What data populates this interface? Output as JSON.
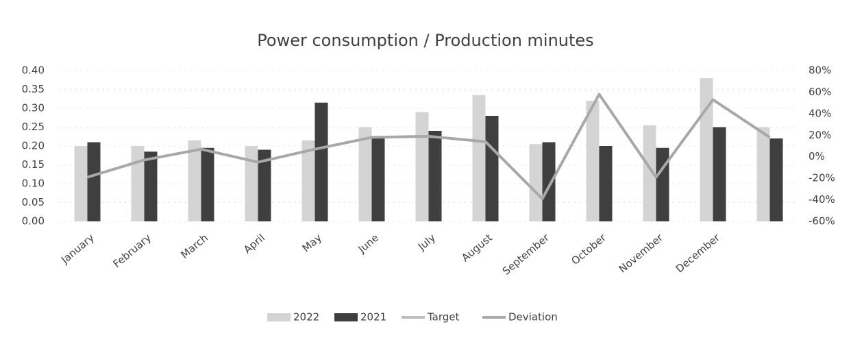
{
  "chart_data": {
    "type": "bar",
    "title": "Power consumption / Production minutes",
    "categories": [
      "January",
      "February",
      "March",
      "April",
      "May",
      "June",
      "July",
      "August",
      "September",
      "October",
      "November",
      "December",
      null
    ],
    "series": [
      {
        "name": "2022",
        "color": "#d4d4d4",
        "type": "bar",
        "values": [
          0.2,
          0.2,
          0.215,
          0.2,
          0.215,
          0.25,
          0.29,
          0.335,
          0.205,
          0.32,
          0.255,
          0.38,
          0.25
        ]
      },
      {
        "name": "2021",
        "color": "#3f3f3f",
        "type": "bar",
        "values": [
          0.21,
          0.185,
          0.195,
          0.19,
          0.315,
          0.22,
          0.24,
          0.28,
          0.21,
          0.2,
          0.195,
          0.25,
          0.22
        ]
      },
      {
        "name": "Target",
        "color": "#bdbdbd",
        "type": "line",
        "axis": "y2",
        "values": [
          null,
          null,
          null,
          null,
          null,
          null,
          null,
          null,
          null,
          null,
          null,
          null,
          null
        ]
      },
      {
        "name": "Deviation",
        "color": "#a8a8a8",
        "type": "line",
        "axis": "y2",
        "values": [
          -19,
          -3,
          7,
          -5,
          7,
          18,
          19,
          14,
          -39,
          58,
          -19,
          53,
          18
        ]
      }
    ],
    "ylim": [
      0,
      0.4
    ],
    "yticks": [
      {
        "value": 0,
        "label": "0.00"
      },
      {
        "value": 0.05,
        "label": "0.05"
      },
      {
        "value": 0.1,
        "label": "0.10"
      },
      {
        "value": 0.15,
        "label": "0.15"
      },
      {
        "value": 0.2,
        "label": "0.20"
      },
      {
        "value": 0.25,
        "label": "0.25"
      },
      {
        "value": 0.3,
        "label": "0.30"
      },
      {
        "value": 0.35,
        "label": "0.35"
      },
      {
        "value": 0.4,
        "label": "0.40"
      }
    ],
    "y2lim": [
      -60,
      80
    ],
    "y2ticks": [
      {
        "value": -60,
        "label": "-60%"
      },
      {
        "value": -40,
        "label": "-40%"
      },
      {
        "value": -20,
        "label": "-20%"
      },
      {
        "value": 0,
        "label": "0%"
      },
      {
        "value": 20,
        "label": "20%"
      },
      {
        "value": 40,
        "label": "40%"
      },
      {
        "value": 60,
        "label": "60%"
      },
      {
        "value": 80,
        "label": "80%"
      }
    ],
    "grid": true,
    "legend": "bottom"
  }
}
